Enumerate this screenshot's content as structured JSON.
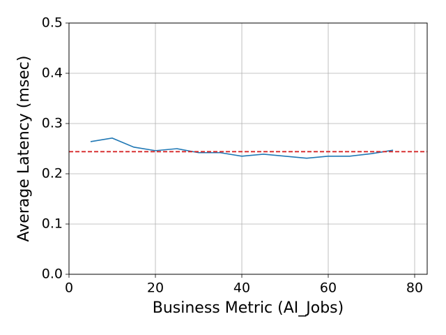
{
  "chart_data": {
    "type": "line",
    "x_label": "Business Metric (AI_Jobs)",
    "y_label": "Average Latency (msec)",
    "x": [
      5,
      10,
      15,
      20,
      25,
      30,
      35,
      40,
      45,
      50,
      55,
      60,
      65,
      70,
      75
    ],
    "series": [
      {
        "color": "#1f77b4",
        "values": [
          0.264,
          0.271,
          0.253,
          0.246,
          0.25,
          0.242,
          0.242,
          0.235,
          0.239,
          0.235,
          0.231,
          0.235,
          0.235,
          0.24,
          0.247
        ]
      }
    ],
    "reference_line": {
      "value": 0.244,
      "color": "#d62728",
      "dashed": true
    },
    "xlim": [
      0,
      82.9
    ],
    "ylim": [
      0,
      0.5
    ],
    "xticks": [
      0,
      20,
      40,
      60,
      80
    ],
    "yticks": [
      {
        "value": 0,
        "label": "0.0"
      },
      0.1,
      0.2,
      0.3,
      0.4,
      0.5
    ],
    "grid": true
  }
}
